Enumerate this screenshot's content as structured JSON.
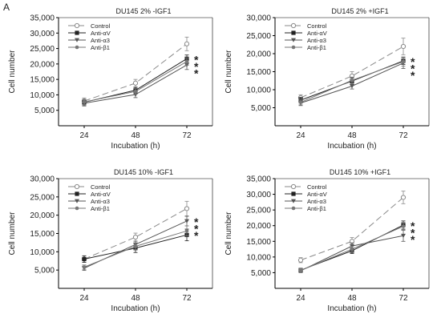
{
  "figure": {
    "panel_label": "A"
  },
  "chart_data": [
    {
      "type": "line",
      "title": "DU145 2% -IGF1",
      "xlabel": "Incubation (h)",
      "ylabel": "Cell number",
      "categories": [
        "24",
        "48",
        "72"
      ],
      "ylim": [
        0,
        35000
      ],
      "yticks": [
        "5,000",
        "10,000",
        "15,000",
        "20,000",
        "25,000",
        "30,000",
        "35,000"
      ],
      "legend_position": "top-left",
      "series": [
        {
          "name": "Control",
          "values": [
            8000,
            13800,
            26500
          ],
          "errors": [
            1000,
            1200,
            2200
          ]
        },
        {
          "name": "Anti-αV",
          "values": [
            7600,
            11500,
            21700
          ],
          "errors": [
            900,
            900,
            1200
          ]
        },
        {
          "name": "Anti-α3",
          "values": [
            7300,
            10100,
            19700
          ],
          "errors": [
            900,
            1000,
            1500
          ]
        },
        {
          "name": "Anti-β1",
          "values": [
            7700,
            11100,
            20800
          ],
          "errors": [
            900,
            900,
            1200
          ]
        }
      ],
      "annotations": [
        "*",
        "*",
        "*"
      ]
    },
    {
      "type": "line",
      "title": "DU145 2% +IGF1",
      "xlabel": "Incubation (h)",
      "ylabel": "Cell number",
      "categories": [
        "24",
        "48",
        "72"
      ],
      "ylim": [
        0,
        30000
      ],
      "yticks": [
        "5,000",
        "10,000",
        "15,000",
        "20,000",
        "25,000",
        "30,000"
      ],
      "legend_position": "top-left",
      "series": [
        {
          "name": "Control",
          "values": [
            7800,
            13800,
            22000
          ],
          "errors": [
            800,
            1200,
            2300
          ]
        },
        {
          "name": "Anti-αV",
          "values": [
            7100,
            12400,
            18000
          ],
          "errors": [
            800,
            900,
            1000
          ]
        },
        {
          "name": "Anti-α3",
          "values": [
            6300,
            11000,
            17400
          ],
          "errors": [
            700,
            800,
            1500
          ]
        },
        {
          "name": "Anti-β1",
          "values": [
            6500,
            12600,
            17800
          ],
          "errors": [
            700,
            900,
            1300
          ]
        }
      ],
      "annotations": [
        "*",
        "*",
        "*"
      ]
    },
    {
      "type": "line",
      "title": "DU145 10% -IGF1",
      "xlabel": "Incubation (h)",
      "ylabel": "Cell number",
      "categories": [
        "24",
        "48",
        "72"
      ],
      "ylim": [
        0,
        30000
      ],
      "yticks": [
        "5,000",
        "10,000",
        "15,000",
        "20,000",
        "25,000",
        "30,000"
      ],
      "legend_position": "top-left",
      "series": [
        {
          "name": "Control",
          "values": [
            8000,
            14000,
            21800
          ],
          "errors": [
            900,
            1100,
            2000
          ]
        },
        {
          "name": "Anti-αV",
          "values": [
            8000,
            11000,
            14600
          ],
          "errors": [
            900,
            1200,
            1600
          ]
        },
        {
          "name": "Anti-α3",
          "values": [
            5500,
            12000,
            18400
          ],
          "errors": [
            600,
            900,
            1300
          ]
        },
        {
          "name": "Anti-β1",
          "values": [
            5800,
            11500,
            15700
          ],
          "errors": [
            600,
            900,
            1400
          ]
        }
      ],
      "annotations": [
        "*",
        "*",
        "*"
      ]
    },
    {
      "type": "line",
      "title": "DU145 10% +IGF1",
      "xlabel": "Incubation (h)",
      "ylabel": "Cell number",
      "categories": [
        "24",
        "48",
        "72"
      ],
      "ylim": [
        0,
        35000
      ],
      "yticks": [
        "5,000",
        "10,000",
        "15,000",
        "20,000",
        "25,000",
        "30,000",
        "35,000"
      ],
      "legend_position": "top-left",
      "series": [
        {
          "name": "Control",
          "values": [
            9000,
            15000,
            29000
          ],
          "errors": [
            800,
            1200,
            2000
          ]
        },
        {
          "name": "Anti-αV",
          "values": [
            5800,
            12000,
            20200
          ],
          "errors": [
            600,
            900,
            1300
          ]
        },
        {
          "name": "Anti-α3",
          "values": [
            5600,
            13500,
            16800
          ],
          "errors": [
            600,
            1000,
            1800
          ]
        },
        {
          "name": "Anti-β1",
          "values": [
            5700,
            12500,
            19800
          ],
          "errors": [
            600,
            900,
            1300
          ]
        }
      ],
      "annotations": [
        "*",
        "*",
        "*"
      ]
    }
  ]
}
